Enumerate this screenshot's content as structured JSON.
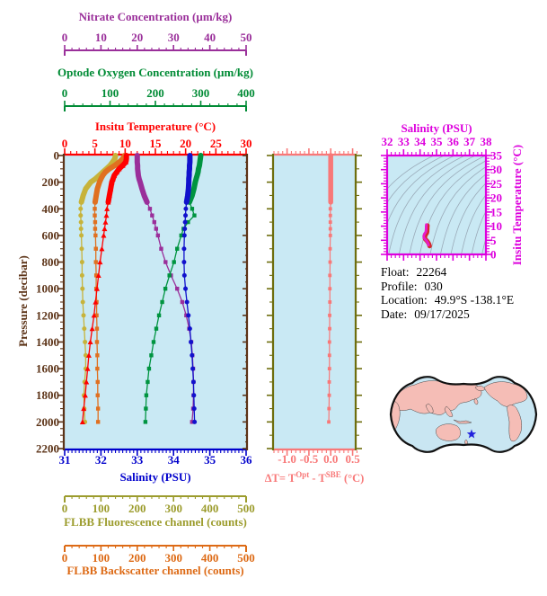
{
  "colors": {
    "plot_bg": "#C9E9F4",
    "frame_brown": "#5C3317",
    "frame_olive": "#6E6E0E",
    "frame_salmon": "#F87878",
    "frame_magenta": "#DD00DD",
    "map_outline": "#111111",
    "map_land": "#F5BDB6",
    "map_ocean": "#C9E6F2",
    "star": "#2222DD",
    "isoline": "#9AAAB8",
    "ts_curve_outer": "#D42828",
    "ts_curve_inner": "#E81CC8"
  },
  "axes": {
    "nitrate": {
      "title": "Nitrate Concentration (µm/kg)",
      "color": "#9A2F9A",
      "min": 0,
      "max": 50,
      "major": 10,
      "minor": 2,
      "tick_labels": [
        "0",
        "10",
        "20",
        "30",
        "40",
        "50"
      ]
    },
    "oxygen": {
      "title": "Optode Oxygen Concentration (µm/kg)",
      "color": "#008B35",
      "min": 0,
      "max": 400,
      "major": 100,
      "minor": 20,
      "tick_labels": [
        "0",
        "100",
        "200",
        "300",
        "400"
      ]
    },
    "temperature": {
      "title": "Insitu Temperature (°C)",
      "color": "#FF0000",
      "min": 0,
      "max": 30,
      "major": 5,
      "minor": 1,
      "tick_labels": [
        "0",
        "5",
        "10",
        "15",
        "20",
        "25",
        "30"
      ]
    },
    "pressure": {
      "title": "Pressure (decibar)",
      "color": "#5C3317",
      "min": 0,
      "max": 2200,
      "major": 200,
      "minor": 50,
      "tick_labels": [
        "0",
        "200",
        "400",
        "600",
        "800",
        "1000",
        "1200",
        "1400",
        "1600",
        "1800",
        "2000",
        "2200"
      ]
    },
    "salinity": {
      "title": "Salinity (PSU)",
      "color": "#0000CC",
      "min": 31,
      "max": 36,
      "major": 1,
      "minor": 0.1,
      "tick_labels": [
        "31",
        "32",
        "33",
        "34",
        "35",
        "36"
      ]
    },
    "fluorescence": {
      "title": "FLBB Fluorescence channel (counts)",
      "color": "#9C9C2D",
      "min": 0,
      "max": 500,
      "major": 100,
      "minor": 20,
      "tick_labels": [
        "0",
        "100",
        "200",
        "300",
        "400",
        "500"
      ]
    },
    "backscatter": {
      "title": "FLBB Backscatter channel (counts)",
      "color": "#DD6A15",
      "min": 0,
      "max": 500,
      "major": 100,
      "minor": 20,
      "tick_labels": [
        "0",
        "100",
        "200",
        "300",
        "400",
        "500"
      ]
    },
    "delta_t": {
      "title_prefix": "ΔT= T",
      "title_sup1": "Opt",
      "title_mid": " - T",
      "title_sup2": "SBE",
      "title_suffix": " (°C)",
      "color": "#F87878",
      "min": -1.0,
      "max": 0.5,
      "major": 0.5,
      "minor": 0.1,
      "tick_labels": [
        "-1.0",
        "-0.5",
        "0.0",
        "0.5"
      ],
      "tick_values": [
        -1.0,
        -0.5,
        0.0,
        0.5
      ]
    },
    "ts_salinity": {
      "title": "Salinity (PSU)",
      "color": "#DD00DD",
      "min": 32,
      "max": 38,
      "major": 1,
      "minor": 0.25,
      "tick_labels": [
        "32",
        "33",
        "34",
        "35",
        "36",
        "37",
        "38"
      ]
    },
    "ts_temperature": {
      "title": "Insitu Temperature (°C)",
      "color": "#DD00DD",
      "min": 0,
      "max": 35,
      "major": 5,
      "minor": 1,
      "tick_labels": [
        "0",
        "5",
        "10",
        "15",
        "20",
        "25",
        "30",
        "35"
      ]
    }
  },
  "info": {
    "rows": [
      {
        "label": "Float:",
        "value": "22264"
      },
      {
        "label": "Profile:",
        "value": "030"
      },
      {
        "label": "Location:",
        "value": "49.9°S  -138.1°E"
      },
      {
        "label": "Date:",
        "value": "09/17/2025"
      }
    ]
  },
  "chart_data": [
    {
      "id": "profile-plot",
      "type": "line",
      "ylabel": "Pressure (decibar)",
      "ylim": [
        0,
        2200
      ],
      "pressure": [
        0,
        25,
        50,
        75,
        100,
        125,
        150,
        175,
        200,
        250,
        300,
        350,
        400,
        450,
        500,
        550,
        600,
        700,
        800,
        900,
        1000,
        1100,
        1200,
        1300,
        1400,
        1500,
        1600,
        1700,
        1800,
        1900,
        2000
      ],
      "series": [
        {
          "name": "FLBB Fluorescence channel (counts)",
          "axis": "fluorescence",
          "color": "#C7B33A",
          "marker": "circle",
          "xlim": [
            0,
            500
          ],
          "values": [
            140,
            138,
            132,
            125,
            115,
            105,
            95,
            85,
            72,
            58,
            51,
            46,
            44,
            44,
            45,
            45,
            46,
            47,
            48,
            48,
            49,
            50,
            52,
            54,
            56,
            58,
            58,
            55,
            53,
            54,
            56
          ]
        },
        {
          "name": "FLBB Backscatter channel (counts)",
          "axis": "backscatter",
          "color": "#E07020",
          "marker": "square",
          "xlim": [
            0,
            500
          ],
          "values": [
            165,
            160,
            150,
            138,
            123,
            112,
            105,
            100,
            96,
            90,
            87,
            84,
            83,
            83,
            84,
            84,
            85,
            86,
            86,
            87,
            87,
            88,
            88,
            89,
            89,
            90,
            90,
            91,
            91,
            92,
            92
          ]
        },
        {
          "name": "Insitu Temperature (°C)",
          "axis": "temperature",
          "color": "#FF0000",
          "marker": "triangle",
          "xlim": [
            0,
            30
          ],
          "values": [
            10.2,
            10.2,
            10.1,
            9.6,
            9.0,
            8.6,
            8.2,
            8.0,
            7.8,
            7.6,
            7.4,
            7.2,
            7.0,
            6.9,
            6.75,
            6.6,
            6.45,
            6.15,
            5.85,
            5.6,
            5.35,
            5.1,
            4.85,
            4.55,
            4.25,
            4.0,
            3.8,
            3.6,
            3.4,
            3.15,
            2.95
          ]
        },
        {
          "name": "Nitrate Concentration (µm/kg)",
          "axis": "nitrate",
          "color": "#9A2F9A",
          "marker": "square",
          "xlim": [
            0,
            50
          ],
          "values": [
            20.0,
            20.0,
            20.0,
            20.1,
            20.1,
            20.2,
            20.3,
            20.5,
            20.8,
            21.3,
            21.9,
            22.7,
            23.5,
            24.1,
            24.7,
            25.2,
            25.7,
            26.6,
            27.8,
            29.3,
            31.0,
            32.4,
            33.5,
            34.3,
            34.9,
            35.2,
            35.4,
            35.5,
            35.5,
            35.4,
            35.1
          ]
        },
        {
          "name": "Optode Oxygen Concentration (µm/kg)",
          "axis": "oxygen",
          "color": "#009440",
          "marker": "square",
          "xlim": [
            0,
            400
          ],
          "values": [
            300,
            299,
            298,
            297,
            295,
            294,
            292,
            290,
            288,
            285,
            281,
            275,
            281,
            286,
            272,
            262,
            257,
            248,
            241,
            231,
            222,
            215,
            208,
            202,
            196,
            191,
            186,
            183,
            180,
            179,
            178
          ]
        },
        {
          "name": "Salinity (PSU)",
          "axis": "salinity",
          "color": "#1111CC",
          "marker": "circle",
          "xlim": [
            31,
            36
          ],
          "values": [
            34.45,
            34.45,
            34.45,
            34.44,
            34.44,
            34.43,
            34.43,
            34.42,
            34.42,
            34.41,
            34.39,
            34.36,
            34.34,
            34.33,
            34.32,
            34.31,
            34.3,
            34.29,
            34.29,
            34.3,
            34.33,
            34.37,
            34.41,
            34.45,
            34.48,
            34.51,
            34.53,
            34.55,
            34.56,
            34.57,
            34.58
          ]
        }
      ]
    },
    {
      "id": "delta-t-plot",
      "type": "line",
      "xlabel": "ΔT= TOpt - TSBE (°C)",
      "xlim": [
        -1.0,
        0.5
      ],
      "ylim": [
        0,
        2200
      ],
      "color": "#F87878",
      "pressure": [
        0,
        25,
        50,
        75,
        100,
        125,
        150,
        175,
        200,
        250,
        300,
        350,
        400,
        450,
        500,
        550,
        600,
        700,
        800,
        900,
        1000,
        1100,
        1200,
        1300,
        1400,
        1500,
        1600,
        1700,
        1800,
        1900,
        2000
      ],
      "values": [
        0,
        0,
        0,
        0,
        0,
        0,
        0,
        0,
        0,
        0,
        0,
        0,
        -0.01,
        -0.01,
        -0.01,
        -0.01,
        -0.01,
        -0.015,
        -0.015,
        -0.02,
        -0.02,
        -0.02,
        -0.025,
        -0.025,
        -0.03,
        -0.03,
        -0.03,
        -0.035,
        -0.035,
        -0.04,
        -0.045
      ]
    },
    {
      "id": "ts-diagram",
      "type": "line",
      "xlabel": "Salinity (PSU)",
      "ylabel": "Insitu Temperature (°C)",
      "xlim": [
        32,
        38
      ],
      "ylim": [
        0,
        35
      ],
      "background": "density-isolines",
      "salinity": [
        34.45,
        34.45,
        34.45,
        34.44,
        34.44,
        34.43,
        34.43,
        34.42,
        34.42,
        34.41,
        34.39,
        34.36,
        34.34,
        34.33,
        34.32,
        34.31,
        34.3,
        34.29,
        34.29,
        34.3,
        34.33,
        34.37,
        34.41,
        34.45,
        34.48,
        34.51,
        34.53,
        34.55,
        34.56,
        34.57,
        34.58
      ],
      "temperature": [
        10.2,
        10.2,
        10.1,
        9.6,
        9.0,
        8.6,
        8.2,
        8.0,
        7.8,
        7.6,
        7.4,
        7.2,
        7.0,
        6.9,
        6.75,
        6.6,
        6.45,
        6.15,
        5.85,
        5.6,
        5.35,
        5.1,
        4.85,
        4.55,
        4.25,
        4.0,
        3.8,
        3.6,
        3.4,
        3.15,
        2.95
      ]
    }
  ]
}
